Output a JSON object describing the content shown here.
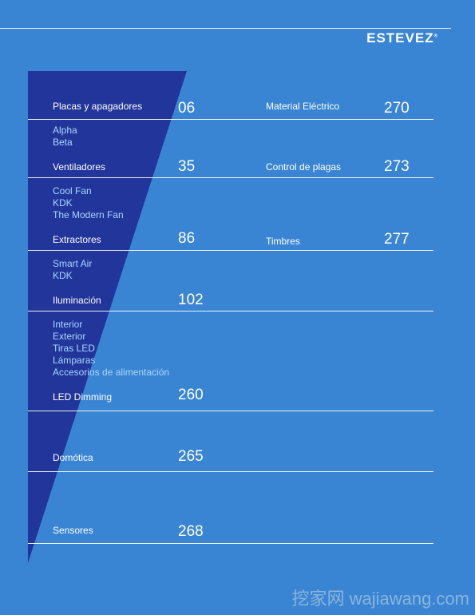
{
  "brand": {
    "logo": "ESTEVEZ",
    "registered": "®"
  },
  "colors": {
    "background": "#3a85d3",
    "triangle": "#22359a",
    "sublink": "#a9d7ff"
  },
  "left_column": [
    {
      "title": "Placas y apagadores",
      "page": "06",
      "sub": [
        "Alpha",
        "Beta"
      ]
    },
    {
      "title": "Ventiladores",
      "page": "35",
      "sub": [
        "Cool Fan",
        "KDK",
        "The Modern Fan"
      ]
    },
    {
      "title": "Extractores",
      "page": "86",
      "sub": [
        "Smart Air",
        "KDK"
      ]
    },
    {
      "title": "Iluminación",
      "page": "102",
      "sub": [
        "Interior",
        "Exterior",
        "Tiras LED",
        "Lámparas",
        "Accesorios de alimentación"
      ]
    },
    {
      "title": "LED Dimming",
      "page": "260",
      "sub": []
    },
    {
      "title": "Domótica",
      "page": "265",
      "sub": []
    },
    {
      "title": "Sensores",
      "page": "268",
      "sub": []
    }
  ],
  "right_column": [
    {
      "title": "Material Eléctrico",
      "page": "270"
    },
    {
      "title": "Control de plagas",
      "page": "273"
    },
    {
      "title": "Timbres",
      "page": "277"
    }
  ],
  "watermark": "挖家网 wajiawang.com"
}
